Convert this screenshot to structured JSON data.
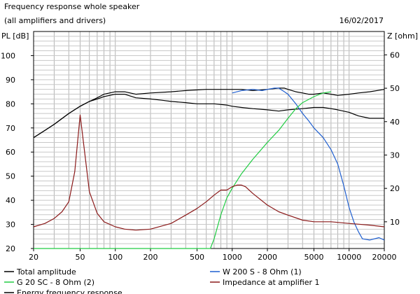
{
  "header": {
    "title_line1": "Frequency response whole speaker",
    "title_line2": "(all amplifiers and drivers)",
    "date": "16/02/2017"
  },
  "axes": {
    "y_left_label": "PL [dB]",
    "y_right_label": "Z [ohm]"
  },
  "legend": {
    "items": [
      {
        "label": "Total amplitude",
        "color": "#000000"
      },
      {
        "label": "W 200 S - 8 Ohm (1)",
        "color": "#1f5fd0"
      },
      {
        "label": "G 20 SC - 8 Ohm (2)",
        "color": "#22cc44"
      },
      {
        "label": "Impedance at amplifier 1",
        "color": "#8b1a1a"
      },
      {
        "label": "Energy frequency response",
        "color": "#000000"
      }
    ]
  },
  "chart_data": {
    "type": "line",
    "x_scale": "log",
    "xlim": [
      20,
      20000
    ],
    "ylim_left": [
      20,
      110
    ],
    "ylim_right": [
      2,
      67
    ],
    "x_ticks": [
      20,
      50,
      100,
      200,
      500,
      1000,
      2000,
      5000,
      10000,
      20000
    ],
    "x_tick_labels": [
      "20",
      "50",
      "100",
      "200",
      "500",
      "1000",
      "2000",
      "5000",
      "10000",
      "20000"
    ],
    "y_left_ticks": [
      20,
      30,
      40,
      50,
      60,
      70,
      80,
      90,
      100
    ],
    "y_right_ticks": [
      10,
      20,
      30,
      40,
      50,
      60
    ],
    "grid": true,
    "series": [
      {
        "name": "Total amplitude",
        "axis": "left",
        "color": "#000000",
        "x": [
          20,
          25,
          30,
          40,
          50,
          60,
          70,
          80,
          100,
          120,
          150,
          200,
          300,
          400,
          600,
          800,
          1000,
          1200,
          1500,
          2000,
          2500,
          2800,
          3000,
          3500,
          4000,
          4500,
          5000,
          6000,
          7000,
          8000,
          10000,
          12000,
          15000,
          20000
        ],
        "y": [
          66,
          69,
          71.5,
          76,
          79,
          81,
          82.5,
          84,
          85,
          85,
          84,
          84.5,
          85,
          85.5,
          86,
          86,
          86,
          86,
          85.5,
          86,
          86.5,
          86.5,
          86,
          85,
          84.5,
          84,
          84,
          84.5,
          84,
          83.5,
          84,
          84.5,
          85,
          86
        ]
      },
      {
        "name": "Energy frequency response",
        "axis": "left",
        "color": "#000000",
        "x": [
          20,
          25,
          30,
          40,
          50,
          60,
          70,
          80,
          100,
          120,
          150,
          200,
          250,
          300,
          400,
          500,
          700,
          900,
          1000,
          1200,
          1500,
          2000,
          2500,
          3000,
          4000,
          5000,
          6000,
          7000,
          8000,
          10000,
          12000,
          15000,
          20000
        ],
        "y": [
          66,
          69,
          71.5,
          76,
          79,
          81,
          82,
          83,
          84,
          84,
          82.5,
          82,
          81.5,
          81,
          80.5,
          80,
          80,
          79.5,
          79,
          78.5,
          78,
          77.5,
          77,
          77.5,
          78,
          78.5,
          78.5,
          78,
          77.5,
          76.5,
          75,
          74,
          74
        ]
      },
      {
        "name": "W 200 S - 8 Ohm (1)",
        "axis": "left",
        "color": "#1f5fd0",
        "x": [
          1000,
          1200,
          1500,
          1800,
          2000,
          2300,
          2500,
          2800,
          3000,
          3500,
          4000,
          4500,
          5000,
          6000,
          7000,
          8000,
          9000,
          10000,
          11000,
          12000,
          13000,
          15000,
          18000,
          20000
        ],
        "y": [
          84.5,
          85.5,
          86,
          85.5,
          86,
          86.5,
          86.5,
          85,
          84,
          80,
          76,
          73,
          70,
          66,
          61,
          55,
          46,
          37,
          31,
          27,
          24,
          23.5,
          24.5,
          23.5
        ]
      },
      {
        "name": "G 20 SC - 8 Ohm (2)",
        "axis": "left",
        "color": "#22cc44",
        "x": [
          20,
          100,
          500,
          650,
          700,
          800,
          900,
          1000,
          1200,
          1500,
          2000,
          2500,
          3000,
          3500,
          4000,
          5000,
          6000,
          7000
        ],
        "y": [
          20,
          20,
          20,
          20,
          24,
          34,
          41,
          45,
          51,
          57,
          64,
          69,
          74,
          78,
          80.5,
          83,
          84.5,
          85
        ]
      },
      {
        "name": "Impedance at amplifier 1",
        "axis": "right",
        "color": "#8b1a1a",
        "x": [
          20,
          25,
          30,
          35,
          40,
          45,
          50,
          55,
          60,
          70,
          80,
          100,
          120,
          150,
          200,
          300,
          400,
          500,
          600,
          700,
          800,
          900,
          1000,
          1100,
          1200,
          1300,
          1500,
          2000,
          2500,
          3000,
          4000,
          5000,
          7000,
          10000,
          15000,
          20000
        ],
        "y": [
          8.5,
          9.5,
          11,
          13,
          16,
          25,
          42,
          30,
          19,
          12.5,
          10,
          8.5,
          7.8,
          7.5,
          7.8,
          9.5,
          12,
          14,
          16,
          18,
          19.5,
          19.5,
          20.5,
          21,
          21,
          20.5,
          18.5,
          15,
          13,
          12,
          10.5,
          10,
          10,
          9.5,
          9,
          8.5
        ]
      }
    ]
  }
}
